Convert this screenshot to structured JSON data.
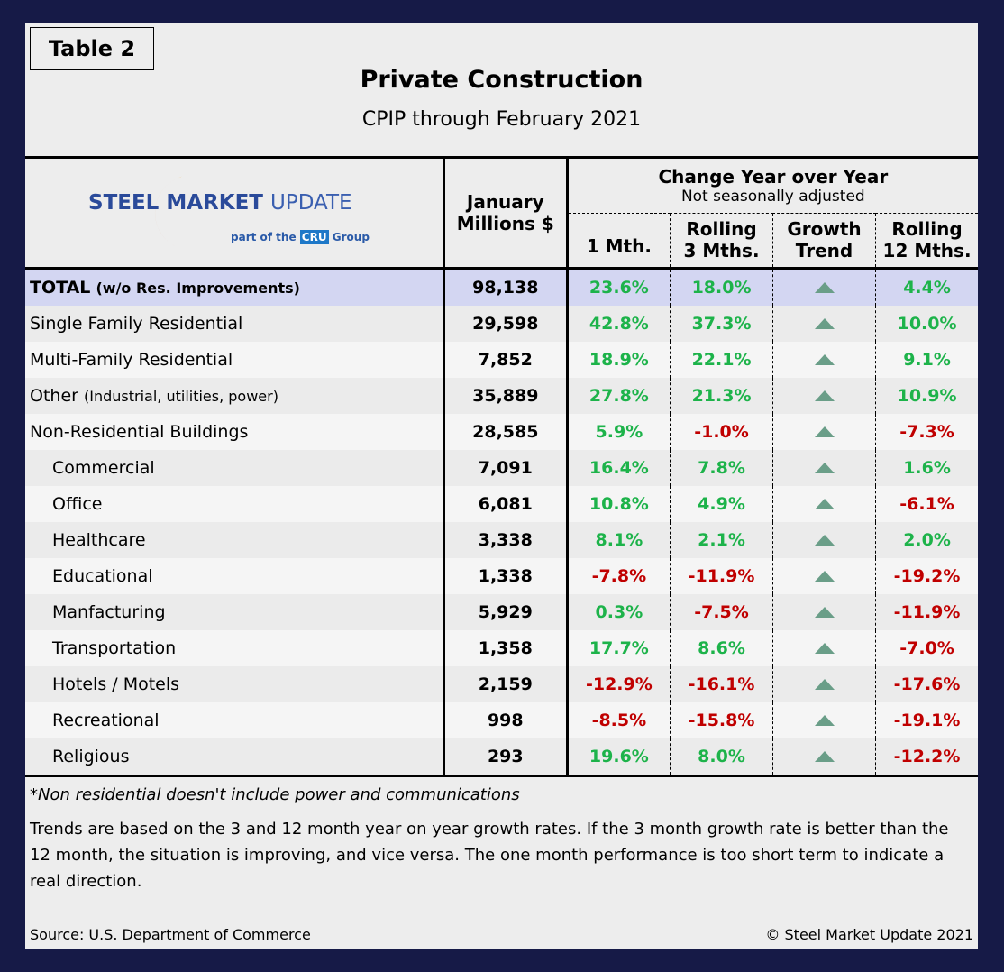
{
  "tag": "Table 2",
  "title": "Private Construction",
  "subtitle": "CPIP through February 2021",
  "logo": {
    "text_bold": "STEEL",
    "text_mid": "MARKET",
    "text_light": "UPDATE",
    "tagline_pre": "part of the",
    "tagline_mark": "CRU",
    "tagline_post": "Group"
  },
  "header": {
    "jan_line1": "January",
    "jan_line2": "Millions $",
    "group_title": "Change Year over Year",
    "group_sub": "Not seasonally adjusted",
    "col1": "1 Mth.",
    "col2a": "Rolling",
    "col2b": "3 Mths.",
    "col3a": "Growth",
    "col3b": "Trend",
    "col4a": "Rolling",
    "col4b": "12 Mths."
  },
  "rows": [
    {
      "label": "TOTAL",
      "paren": "(w/o Res. Improvements)",
      "jan": "98,138",
      "m1": "23.6%",
      "m3": "18.0%",
      "trend": "up",
      "m12": "4.4%"
    },
    {
      "label": "Single Family Residential",
      "paren": "",
      "jan": "29,598",
      "m1": "42.8%",
      "m3": "37.3%",
      "trend": "up",
      "m12": "10.0%"
    },
    {
      "label": "Multi-Family Residential",
      "paren": "",
      "jan": "7,852",
      "m1": "18.9%",
      "m3": "22.1%",
      "trend": "up",
      "m12": "9.1%"
    },
    {
      "label": "Other",
      "paren": "(Industrial, utilities, power)",
      "jan": "35,889",
      "m1": "27.8%",
      "m3": "21.3%",
      "trend": "up",
      "m12": "10.9%"
    },
    {
      "label": "Non-Residential Buildings",
      "paren": "",
      "jan": "28,585",
      "m1": "5.9%",
      "m3": "-1.0%",
      "trend": "up",
      "m12": "-7.3%"
    },
    {
      "label": "Commercial",
      "paren": "",
      "jan": "7,091",
      "m1": "16.4%",
      "m3": "7.8%",
      "trend": "up",
      "m12": "1.6%"
    },
    {
      "label": "Office",
      "paren": "",
      "jan": "6,081",
      "m1": "10.8%",
      "m3": "4.9%",
      "trend": "up",
      "m12": "-6.1%"
    },
    {
      "label": "Healthcare",
      "paren": "",
      "jan": "3,338",
      "m1": "8.1%",
      "m3": "2.1%",
      "trend": "up",
      "m12": "2.0%"
    },
    {
      "label": "Educational",
      "paren": "",
      "jan": "1,338",
      "m1": "-7.8%",
      "m3": "-11.9%",
      "trend": "up",
      "m12": "-19.2%"
    },
    {
      "label": "Manfacturing",
      "paren": "",
      "jan": "5,929",
      "m1": "0.3%",
      "m3": "-7.5%",
      "trend": "up",
      "m12": "-11.9%"
    },
    {
      "label": "Transportation",
      "paren": "",
      "jan": "1,358",
      "m1": "17.7%",
      "m3": "8.6%",
      "trend": "up",
      "m12": "-7.0%"
    },
    {
      "label": "Hotels / Motels",
      "paren": "",
      "jan": "2,159",
      "m1": "-12.9%",
      "m3": "-16.1%",
      "trend": "up",
      "m12": "-17.6%"
    },
    {
      "label": "Recreational",
      "paren": "",
      "jan": "998",
      "m1": "-8.5%",
      "m3": "-15.8%",
      "trend": "up",
      "m12": "-19.1%"
    },
    {
      "label": "Religious",
      "paren": "",
      "jan": "293",
      "m1": "19.6%",
      "m3": "8.0%",
      "trend": "up",
      "m12": "-12.2%"
    }
  ],
  "colors": {
    "positive": "#1db34a",
    "negative": "#c00000",
    "trend_up": "#6a9e88",
    "total_row": "#d3d6f2",
    "frame": "#161a47"
  },
  "note": "*Non residential doesn't include power and communications",
  "explanation": "Trends are based on the 3 and 12 month year on year growth rates. If the 3 month growth rate is better than the 12 month, the situation is improving, and vice versa. The one month performance is too short term to indicate a real direction.",
  "source": "Source: U.S. Department of Commerce",
  "copyright": "© Steel Market Update 2021"
}
